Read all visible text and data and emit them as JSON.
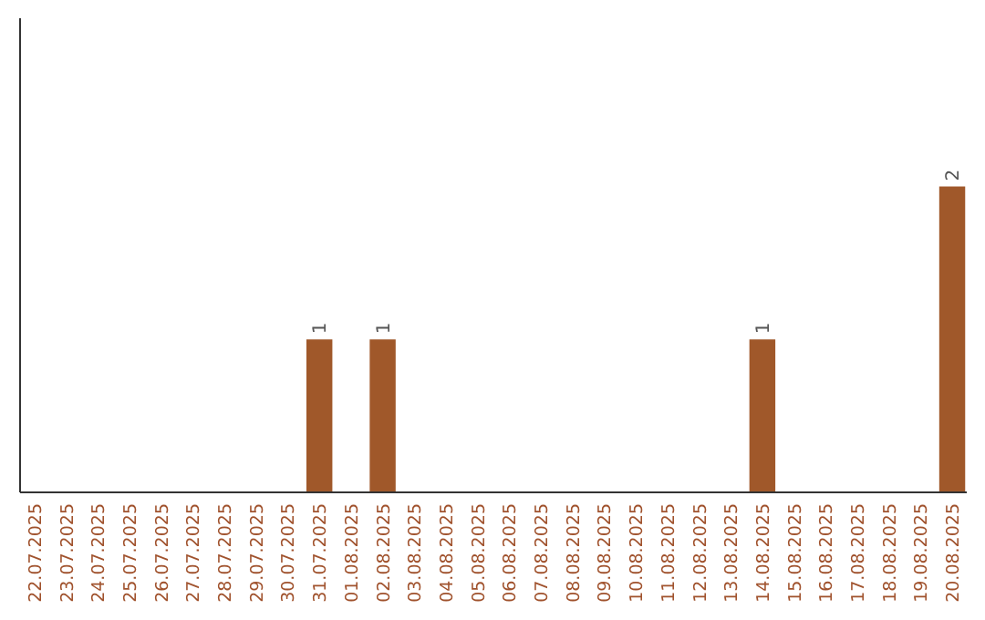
{
  "chart_data": {
    "type": "bar",
    "categories": [
      "22.07.2025",
      "23.07.2025",
      "24.07.2025",
      "25.07.2025",
      "26.07.2025",
      "27.07.2025",
      "28.07.2025",
      "29.07.2025",
      "30.07.2025",
      "31.07.2025",
      "01.08.2025",
      "02.08.2025",
      "03.08.2025",
      "04.08.2025",
      "05.08.2025",
      "06.08.2025",
      "07.08.2025",
      "08.08.2025",
      "09.08.2025",
      "10.08.2025",
      "11.08.2025",
      "12.08.2025",
      "13.08.2025",
      "14.08.2025",
      "15.08.2025",
      "16.08.2025",
      "17.08.2025",
      "18.08.2025",
      "19.08.2025",
      "20.08.2025"
    ],
    "values": [
      0,
      0,
      0,
      0,
      0,
      0,
      0,
      0,
      0,
      1,
      0,
      1,
      0,
      0,
      0,
      0,
      0,
      0,
      0,
      0,
      0,
      0,
      0,
      1,
      0,
      0,
      0,
      0,
      0,
      2
    ],
    "value_labels": [
      null,
      null,
      null,
      null,
      null,
      null,
      null,
      null,
      null,
      "1",
      null,
      "1",
      null,
      null,
      null,
      null,
      null,
      null,
      null,
      null,
      null,
      null,
      null,
      "1",
      null,
      null,
      null,
      null,
      null,
      "2"
    ],
    "color": "#a0582a",
    "ylim": [
      0,
      3.1
    ]
  }
}
